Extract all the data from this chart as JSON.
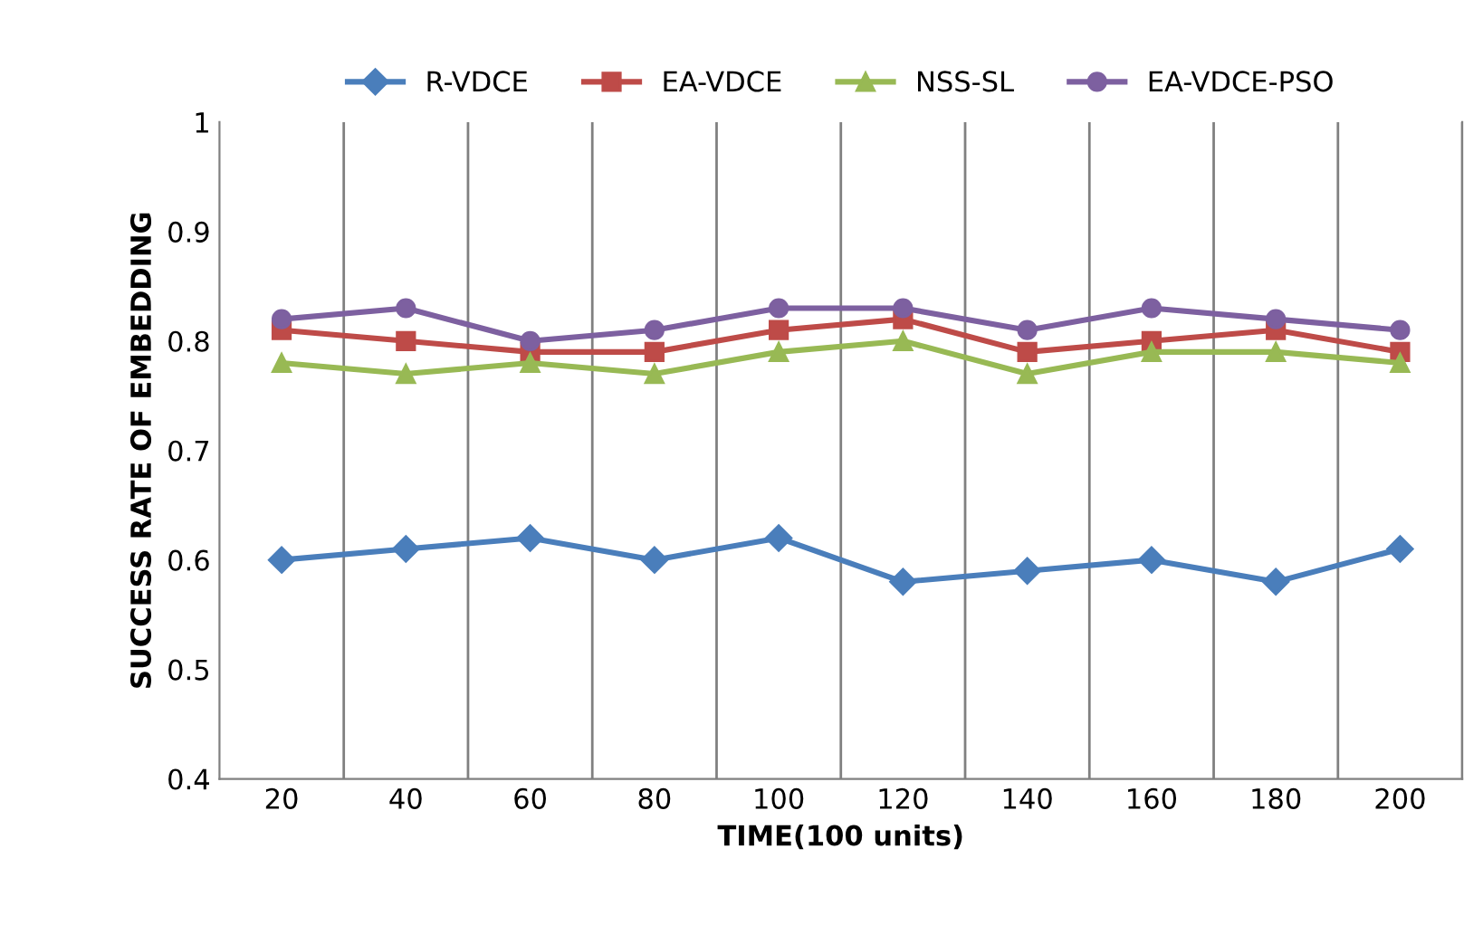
{
  "chart_data": {
    "type": "line",
    "xlabel": "TIME(100 units)",
    "ylabel": "SUCCESS RATE OF EMBEDDING",
    "categories": [
      "20",
      "40",
      "60",
      "80",
      "100",
      "120",
      "140",
      "160",
      "180",
      "200"
    ],
    "series": [
      {
        "name": "R-VDCE",
        "color": "#4a7ebb",
        "marker": "diamond",
        "values": [
          0.6,
          0.61,
          0.62,
          0.6,
          0.62,
          0.58,
          0.59,
          0.6,
          0.58,
          0.61
        ]
      },
      {
        "name": "EA-VDCE",
        "color": "#be4b48",
        "marker": "square",
        "values": [
          0.81,
          0.8,
          0.79,
          0.79,
          0.81,
          0.82,
          0.79,
          0.8,
          0.81,
          0.79
        ]
      },
      {
        "name": "NSS-SL",
        "color": "#98b954",
        "marker": "triangle",
        "values": [
          0.78,
          0.77,
          0.78,
          0.77,
          0.79,
          0.8,
          0.77,
          0.79,
          0.79,
          0.78
        ]
      },
      {
        "name": "EA-VDCE-PSO",
        "color": "#7d60a0",
        "marker": "circle",
        "values": [
          0.82,
          0.83,
          0.8,
          0.81,
          0.83,
          0.83,
          0.81,
          0.83,
          0.82,
          0.81
        ]
      }
    ],
    "ylim": [
      0.4,
      1
    ],
    "yticks": [
      0.4,
      0.5,
      0.6,
      0.7,
      0.8,
      0.9,
      1
    ],
    "grid": "x",
    "legend": "top",
    "line_style": "solid"
  }
}
